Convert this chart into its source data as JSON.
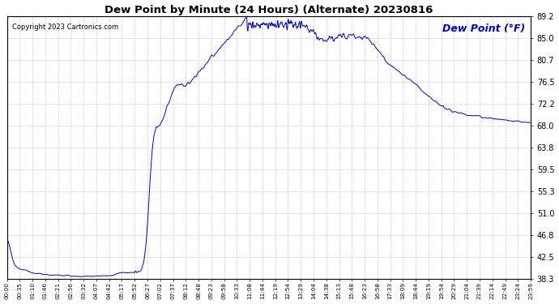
{
  "title": "Dew Point by Minute (24 Hours) (Alternate) 20230816",
  "ylabel": "Dew Point (°F)",
  "copyright_text": "Copyright 2023 Cartronics.com",
  "line_color": "#0000CC",
  "background_color": "#ffffff",
  "plot_background": "#ffffff",
  "grid_color": "#bbbbbb",
  "title_color": "#000000",
  "ylabel_color": "#0000CC",
  "copyright_color": "#000000",
  "ylim": [
    38.3,
    89.2
  ],
  "yticks": [
    38.3,
    42.5,
    46.8,
    51.0,
    55.3,
    59.5,
    63.8,
    68.0,
    72.2,
    76.5,
    80.7,
    85.0,
    89.2
  ],
  "x_tick_labels": [
    "00:00",
    "00:35",
    "01:10",
    "01:46",
    "02:21",
    "02:56",
    "03:32",
    "04:07",
    "04:42",
    "05:17",
    "05:52",
    "06:27",
    "07:02",
    "07:37",
    "08:12",
    "08:48",
    "09:23",
    "09:58",
    "10:33",
    "11:08",
    "11:44",
    "12:19",
    "12:54",
    "13:29",
    "14:04",
    "14:38",
    "15:13",
    "15:48",
    "16:23",
    "16:58",
    "17:33",
    "18:09",
    "18:44",
    "19:19",
    "19:54",
    "20:29",
    "21:04",
    "21:39",
    "22:14",
    "22:49",
    "23:24",
    "23:59"
  ],
  "figsize": [
    6.9,
    3.75
  ],
  "dpi": 100
}
